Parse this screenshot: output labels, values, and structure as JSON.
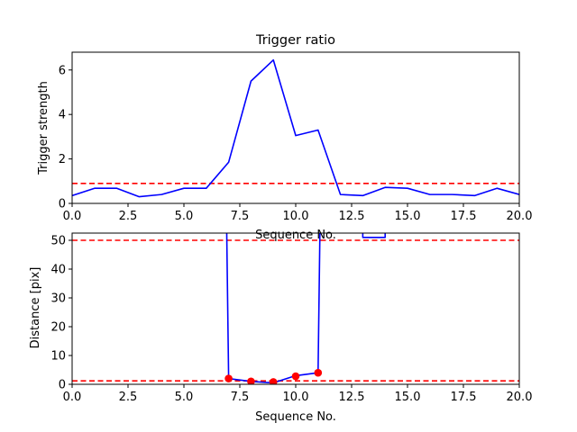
{
  "chart_data": [
    {
      "type": "line",
      "title": "Trigger ratio",
      "xlabel": "Sequence No.",
      "ylabel": "Trigger strength",
      "xlim": [
        0,
        20
      ],
      "ylim": [
        0,
        6.8
      ],
      "xticks": [
        0,
        2.5,
        5,
        7.5,
        10,
        12.5,
        15,
        17.5,
        20
      ],
      "xtick_labels": [
        "0.0",
        "2.5",
        "5.0",
        "7.5",
        "10.0",
        "12.5",
        "15.0",
        "17.5",
        "20.0"
      ],
      "yticks": [
        0,
        2,
        4,
        6
      ],
      "ytick_labels": [
        "0",
        "2",
        "4",
        "6"
      ],
      "grid": false,
      "series": [
        {
          "color": "#0000ff",
          "x": [
            0,
            1,
            2,
            3,
            4,
            5,
            6,
            7,
            8,
            9,
            10,
            11,
            12,
            13,
            14,
            15,
            16,
            17,
            18,
            19,
            20
          ],
          "y": [
            0.35,
            0.68,
            0.68,
            0.3,
            0.4,
            0.68,
            0.68,
            1.85,
            5.5,
            6.45,
            3.05,
            3.3,
            0.4,
            0.35,
            0.72,
            0.68,
            0.4,
            0.4,
            0.35,
            0.68,
            0.4
          ]
        }
      ],
      "hlines": [
        {
          "y": 0.9,
          "color": "#ff0000",
          "style": "dashed"
        }
      ]
    },
    {
      "type": "line",
      "title": "",
      "xlabel": "Sequence No.",
      "ylabel": "Distance [pix]",
      "xlim": [
        0,
        20
      ],
      "ylim": [
        0,
        52.5
      ],
      "xticks": [
        0,
        2.5,
        5,
        7.5,
        10,
        12.5,
        15,
        17.5,
        20
      ],
      "xtick_labels": [
        "0.0",
        "2.5",
        "5.0",
        "7.5",
        "10.0",
        "12.5",
        "15.0",
        "17.5",
        "20.0"
      ],
      "yticks": [
        0,
        10,
        20,
        30,
        40,
        50
      ],
      "ytick_labels": [
        "0",
        "10",
        "20",
        "30",
        "40",
        "50"
      ],
      "grid": false,
      "series": [
        {
          "color": "#0000ff",
          "segments": [
            {
              "x": [
                6.5,
                7,
                8,
                9,
                10,
                11,
                11.5
              ],
              "y": [
                300,
                2,
                1,
                0.5,
                3,
                4,
                300
              ]
            },
            {
              "x": [
                13,
                13,
                14,
                14
              ],
              "y": [
                60,
                51,
                51,
                60
              ]
            }
          ]
        },
        {
          "color": "#ff0000",
          "marker": "circle",
          "x": [
            7,
            8,
            9,
            10,
            11
          ],
          "y": [
            2,
            1,
            0.8,
            2.8,
            4
          ]
        }
      ],
      "hlines": [
        {
          "y": 50,
          "color": "#ff0000",
          "style": "dashed"
        },
        {
          "y": 1.2,
          "color": "#ff0000",
          "style": "dashed"
        }
      ]
    }
  ]
}
